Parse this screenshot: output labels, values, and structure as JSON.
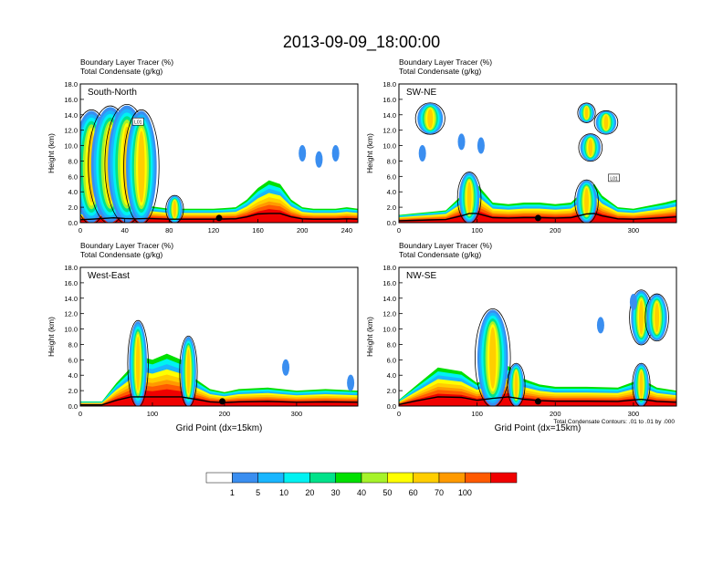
{
  "title": "2013-09-09_18:00:00",
  "shared": {
    "field_label": "Boundary Layer Tracer    (%)",
    "contour_label": "Total Condensate    (g/kg)",
    "ylabel": "Height (km)",
    "xlabel": "Grid Point (dx=15km)",
    "contour_note": "Total Condensate Contours: .01 to .01 by .000",
    "contour_box_label": "L01"
  },
  "colorbar": {
    "labels": [
      "1",
      "5",
      "10",
      "20",
      "30",
      "40",
      "50",
      "60",
      "70",
      "100"
    ],
    "colors": [
      "#ffffff",
      "#3a8ef0",
      "#19b6ff",
      "#00f2f2",
      "#00e28a",
      "#00e000",
      "#a6f32a",
      "#ffff00",
      "#ffce00",
      "#ff9a00",
      "#ff5a00",
      "#f00000"
    ]
  },
  "chart_data": [
    {
      "type": "heatmap",
      "panel": "South-North",
      "xlim": [
        0,
        250
      ],
      "ylim": [
        0,
        18
      ],
      "xticks": [
        0,
        40,
        80,
        120,
        160,
        200,
        240
      ],
      "yticks": [
        0,
        2,
        4,
        6,
        8,
        10,
        12,
        14,
        16,
        18
      ],
      "ytick_labels": [
        "0.0",
        "2.0",
        "4.0",
        "6.0",
        "8.0",
        "10.0",
        "12.0",
        "14.0",
        "16.0",
        "18.0"
      ],
      "profile": [
        [
          0,
          1.5
        ],
        [
          10,
          1.8
        ],
        [
          20,
          2.2
        ],
        [
          30,
          2.5
        ],
        [
          40,
          2.2
        ],
        [
          50,
          2.0
        ],
        [
          60,
          2.2
        ],
        [
          70,
          2.0
        ],
        [
          80,
          1.8
        ],
        [
          90,
          1.8
        ],
        [
          100,
          1.8
        ],
        [
          110,
          1.8
        ],
        [
          120,
          1.8
        ],
        [
          130,
          1.9
        ],
        [
          140,
          2.0
        ],
        [
          150,
          3.0
        ],
        [
          160,
          4.5
        ],
        [
          170,
          5.5
        ],
        [
          180,
          5.0
        ],
        [
          190,
          3.0
        ],
        [
          200,
          2.0
        ],
        [
          210,
          1.8
        ],
        [
          220,
          1.8
        ],
        [
          230,
          1.8
        ],
        [
          240,
          2.0
        ],
        [
          250,
          1.8
        ]
      ],
      "plumes": [
        [
          10,
          0,
          14.5,
          1.4
        ],
        [
          27,
          0,
          15,
          1.5
        ],
        [
          42,
          0,
          15.2,
          1.5
        ],
        [
          55,
          0,
          14.5,
          1.2
        ],
        [
          85,
          0,
          3.5,
          0.6
        ]
      ],
      "blue_patches": [
        [
          200,
          9.0
        ],
        [
          215,
          8.2
        ],
        [
          230,
          9.0
        ]
      ],
      "marker_x": 125
    },
    {
      "type": "heatmap",
      "panel": "SW-NE",
      "xlim": [
        0,
        355
      ],
      "ylim": [
        0,
        18
      ],
      "xticks": [
        0,
        100,
        200,
        300
      ],
      "yticks": [
        0,
        2,
        4,
        6,
        8,
        10,
        12,
        14,
        16,
        18
      ],
      "ytick_labels": [
        "0.0",
        "2.0",
        "4.0",
        "6.0",
        "8.0",
        "10.0",
        "12.0",
        "14.0",
        "16.0",
        "18.0"
      ],
      "profile": [
        [
          0,
          1.0
        ],
        [
          20,
          1.2
        ],
        [
          40,
          1.4
        ],
        [
          60,
          1.6
        ],
        [
          80,
          3.5
        ],
        [
          90,
          6.5
        ],
        [
          100,
          5.0
        ],
        [
          120,
          2.6
        ],
        [
          140,
          2.4
        ],
        [
          160,
          2.6
        ],
        [
          180,
          2.6
        ],
        [
          200,
          2.4
        ],
        [
          220,
          2.6
        ],
        [
          240,
          4.5
        ],
        [
          250,
          5.0
        ],
        [
          260,
          3.5
        ],
        [
          280,
          2.0
        ],
        [
          300,
          1.8
        ],
        [
          320,
          2.2
        ],
        [
          340,
          2.6
        ],
        [
          355,
          3.0
        ]
      ],
      "plumes": [
        [
          90,
          0,
          6.5,
          0.8
        ],
        [
          240,
          0,
          5.5,
          0.8
        ],
        [
          40,
          11.5,
          15.5,
          1.0
        ],
        [
          245,
          8.0,
          11.5,
          0.8
        ],
        [
          265,
          11.5,
          14.5,
          0.8
        ],
        [
          240,
          13.0,
          15.5,
          0.6
        ]
      ],
      "blue_patches": [
        [
          30,
          9.0
        ],
        [
          80,
          10.5
        ],
        [
          105,
          10.0
        ]
      ],
      "marker_x": 178
    },
    {
      "type": "heatmap",
      "panel": "West-East",
      "xlim": [
        0,
        385
      ],
      "ylim": [
        0,
        18
      ],
      "xticks": [
        0,
        100,
        200,
        300
      ],
      "yticks": [
        0,
        2,
        4,
        6,
        8,
        10,
        12,
        14,
        16,
        18
      ],
      "ytick_labels": [
        "0.0",
        "2.0",
        "4.0",
        "6.0",
        "8.0",
        "10.0",
        "12.0",
        "14.0",
        "16.0",
        "18.0"
      ],
      "profile": [
        [
          0,
          0.6
        ],
        [
          30,
          0.6
        ],
        [
          50,
          3.0
        ],
        [
          70,
          5.0
        ],
        [
          80,
          6.5
        ],
        [
          100,
          6.0
        ],
        [
          120,
          6.8
        ],
        [
          140,
          6.0
        ],
        [
          160,
          3.5
        ],
        [
          180,
          2.2
        ],
        [
          200,
          1.8
        ],
        [
          220,
          2.2
        ],
        [
          260,
          2.4
        ],
        [
          300,
          2.0
        ],
        [
          340,
          2.2
        ],
        [
          385,
          2.0
        ]
      ],
      "plumes": [
        [
          80,
          0,
          11.0,
          0.7
        ],
        [
          150,
          0,
          9.0,
          0.6
        ]
      ],
      "blue_patches": [
        [
          285,
          5.0
        ],
        [
          375,
          3.0
        ]
      ],
      "marker_x": 197
    },
    {
      "type": "heatmap",
      "panel": "NW-SE",
      "xlim": [
        0,
        355
      ],
      "ylim": [
        0,
        18
      ],
      "xticks": [
        0,
        100,
        200,
        300
      ],
      "yticks": [
        0,
        2,
        4,
        6,
        8,
        10,
        12,
        14,
        16,
        18
      ],
      "ytick_labels": [
        "0.0",
        "2.0",
        "4.0",
        "6.0",
        "8.0",
        "10.0",
        "12.0",
        "14.0",
        "16.0",
        "18.0"
      ],
      "profile": [
        [
          0,
          0.8
        ],
        [
          20,
          2.5
        ],
        [
          50,
          5.0
        ],
        [
          80,
          4.5
        ],
        [
          100,
          3.0
        ],
        [
          120,
          4.0
        ],
        [
          140,
          5.2
        ],
        [
          160,
          3.5
        ],
        [
          180,
          2.8
        ],
        [
          200,
          2.5
        ],
        [
          240,
          2.5
        ],
        [
          280,
          2.4
        ],
        [
          310,
          3.5
        ],
        [
          330,
          2.4
        ],
        [
          355,
          2.0
        ]
      ],
      "plumes": [
        [
          120,
          0,
          12.5,
          1.2
        ],
        [
          150,
          0,
          5.5,
          0.6
        ],
        [
          310,
          0,
          5.5,
          0.6
        ],
        [
          310,
          8.0,
          15.0,
          0.8
        ],
        [
          330,
          8.5,
          14.5,
          0.8
        ]
      ],
      "blue_patches": [
        [
          258,
          10.5
        ],
        [
          300,
          13.5
        ]
      ],
      "marker_x": 178
    }
  ]
}
